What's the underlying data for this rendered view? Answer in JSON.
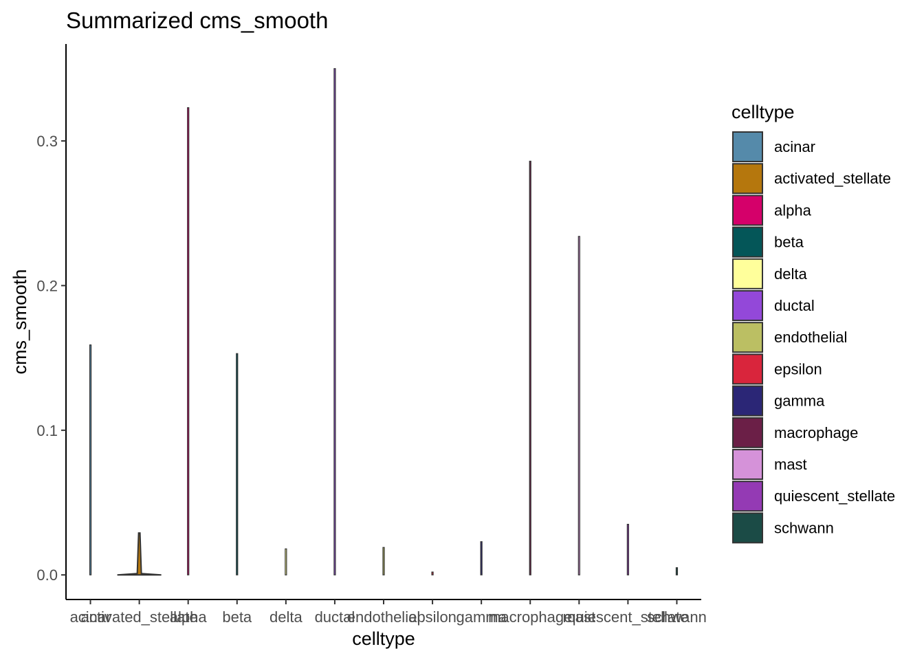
{
  "chart_data": {
    "type": "violin",
    "title": "Summarized cms_smooth",
    "xlabel": "celltype",
    "ylabel": "cms_smooth",
    "ylim": [
      -0.017,
      0.367
    ],
    "yticks": [
      0.0,
      0.1,
      0.2,
      0.3
    ],
    "ytick_labels": [
      "0.0",
      "0.1",
      "0.2",
      "0.3"
    ],
    "grid": false,
    "legend_title": "celltype",
    "legend_position": "right",
    "categories": [
      "acinar",
      "activated_stellate",
      "alpha",
      "beta",
      "delta",
      "ductal",
      "endothelial",
      "epsilon",
      "gamma",
      "macrophage",
      "mast",
      "quiescent_stellate",
      "schwann"
    ],
    "series": [
      {
        "name": "acinar",
        "min": 0.0,
        "max": 0.159,
        "color": "#558aaa"
      },
      {
        "name": "activated_stellate",
        "min": 0.0,
        "max": 0.029,
        "color": "#b5770d"
      },
      {
        "name": "alpha",
        "min": 0.0,
        "max": 0.323,
        "color": "#d5006a"
      },
      {
        "name": "beta",
        "min": 0.0,
        "max": 0.153,
        "color": "#045658"
      },
      {
        "name": "delta",
        "min": 0.0,
        "max": 0.018,
        "color": "#ffff9b"
      },
      {
        "name": "ductal",
        "min": 0.0,
        "max": 0.35,
        "color": "#9348d9"
      },
      {
        "name": "endothelial",
        "min": 0.0,
        "max": 0.019,
        "color": "#bbbf63"
      },
      {
        "name": "epsilon",
        "min": 0.0,
        "max": 0.002,
        "color": "#d9253c"
      },
      {
        "name": "gamma",
        "min": 0.0,
        "max": 0.023,
        "color": "#2b2676"
      },
      {
        "name": "macrophage",
        "min": 0.0,
        "max": 0.286,
        "color": "#6b1f47"
      },
      {
        "name": "mast",
        "min": 0.0,
        "max": 0.234,
        "color": "#d592d9"
      },
      {
        "name": "quiescent_stellate",
        "min": 0.0,
        "max": 0.035,
        "color": "#943ab4"
      },
      {
        "name": "schwann",
        "min": 0.0,
        "max": 0.005,
        "color": "#1b4b46"
      }
    ]
  }
}
